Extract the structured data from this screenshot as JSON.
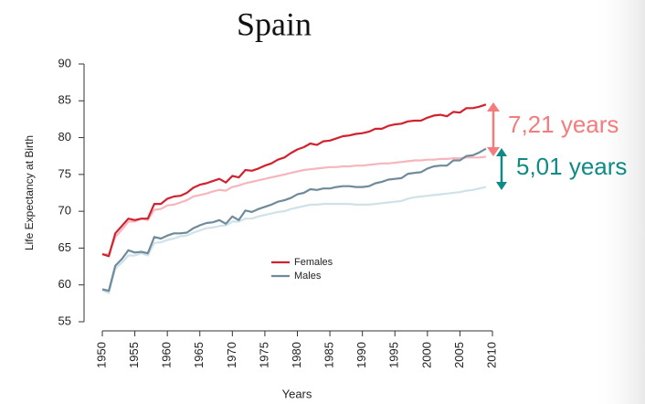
{
  "chart_data": {
    "type": "line",
    "title": "Spain",
    "x_label": "Years",
    "y_label": "Life Expectancy at Birth",
    "x": [
      1950,
      1951,
      1952,
      1953,
      1954,
      1955,
      1956,
      1957,
      1958,
      1959,
      1960,
      1961,
      1962,
      1963,
      1964,
      1965,
      1966,
      1967,
      1968,
      1969,
      1970,
      1971,
      1972,
      1973,
      1974,
      1975,
      1976,
      1977,
      1978,
      1979,
      1980,
      1981,
      1982,
      1983,
      1984,
      1985,
      1986,
      1987,
      1988,
      1989,
      1990,
      1991,
      1992,
      1993,
      1994,
      1995,
      1996,
      1997,
      1998,
      1999,
      2000,
      2001,
      2002,
      2003,
      2004,
      2005,
      2006,
      2007,
      2008,
      2009
    ],
    "series": [
      {
        "name": "Females",
        "color": "#d1222f",
        "values": [
          64.2,
          63.9,
          67,
          68,
          69,
          68.8,
          69,
          69,
          71,
          71,
          71.7,
          72,
          72.1,
          72.5,
          73.2,
          73.6,
          73.8,
          74.1,
          74.4,
          73.9,
          74.8,
          74.6,
          75.6,
          75.5,
          75.8,
          76.2,
          76.5,
          77,
          77.3,
          77.9,
          78.4,
          78.7,
          79.2,
          79,
          79.5,
          79.6,
          79.9,
          80.2,
          80.3,
          80.5,
          80.6,
          80.8,
          81.2,
          81.2,
          81.6,
          81.8,
          81.9,
          82.2,
          82.3,
          82.3,
          82.7,
          83,
          83.1,
          82.9,
          83.5,
          83.4,
          84,
          84,
          84.2,
          84.5
        ]
      },
      {
        "name": "Males",
        "color": "#6f8b9b",
        "values": [
          59.4,
          59.2,
          62.6,
          63.5,
          64.7,
          64.4,
          64.5,
          64.3,
          66.5,
          66.3,
          66.7,
          67,
          67,
          67.1,
          67.7,
          68.1,
          68.4,
          68.5,
          68.8,
          68.3,
          69.3,
          68.8,
          70.1,
          69.9,
          70.3,
          70.6,
          70.9,
          71.3,
          71.5,
          71.8,
          72.3,
          72.5,
          73,
          72.9,
          73.1,
          73.1,
          73.3,
          73.4,
          73.4,
          73.3,
          73.3,
          73.4,
          73.8,
          74,
          74.3,
          74.4,
          74.5,
          75.1,
          75.2,
          75.3,
          75.8,
          76.1,
          76.2,
          76.2,
          76.9,
          76.9,
          77.5,
          77.6,
          78,
          78.5
        ]
      },
      {
        "color": "#f6b6bd",
        "values": [
          64.1,
          64.2,
          66.5,
          67.5,
          68.6,
          68.6,
          69,
          68.8,
          70.2,
          70.3,
          70.8,
          70.9,
          71.2,
          71.5,
          72,
          72.2,
          72.4,
          72.7,
          72.9,
          72.8,
          73.3,
          73.5,
          73.8,
          74,
          74.2,
          74.4,
          74.6,
          74.8,
          75,
          75.2,
          75.4,
          75.6,
          75.7,
          75.8,
          75.9,
          76,
          76,
          76.1,
          76.1,
          76.2,
          76.2,
          76.3,
          76.4,
          76.5,
          76.5,
          76.6,
          76.7,
          76.8,
          76.9,
          76.9,
          77,
          77,
          77.1,
          77.1,
          77.2,
          77.2,
          77.3,
          77.3,
          77.3,
          77.4
        ]
      },
      {
        "color": "#cfe2ea",
        "values": [
          59.3,
          58.9,
          62.2,
          63,
          64,
          64,
          64.3,
          64,
          65.7,
          65.8,
          66.1,
          66.3,
          66.6,
          66.7,
          67.1,
          67.4,
          67.7,
          67.8,
          68,
          68.1,
          68.6,
          68.6,
          69,
          69,
          69.3,
          69.5,
          69.7,
          69.9,
          70,
          70.3,
          70.5,
          70.7,
          70.9,
          70.9,
          71,
          71,
          71,
          71,
          71,
          70.9,
          70.9,
          70.9,
          71,
          71.1,
          71.2,
          71.3,
          71.4,
          71.7,
          71.9,
          72,
          72.1,
          72.2,
          72.3,
          72.4,
          72.5,
          72.6,
          72.8,
          72.9,
          73.1,
          73.3
        ]
      }
    ],
    "xlim": [
      1950,
      2010
    ],
    "xticks": [
      1950,
      1955,
      1960,
      1965,
      1970,
      1975,
      1980,
      1985,
      1990,
      1995,
      2000,
      2005,
      2010
    ],
    "ylim": [
      55,
      90
    ],
    "yticks": [
      55,
      60,
      65,
      70,
      75,
      80,
      85,
      90
    ],
    "annotations": [
      {
        "text": "7,21 years",
        "color": "#f47c7c"
      },
      {
        "text": "5,01 years",
        "color": "#0e8b86"
      }
    ]
  }
}
